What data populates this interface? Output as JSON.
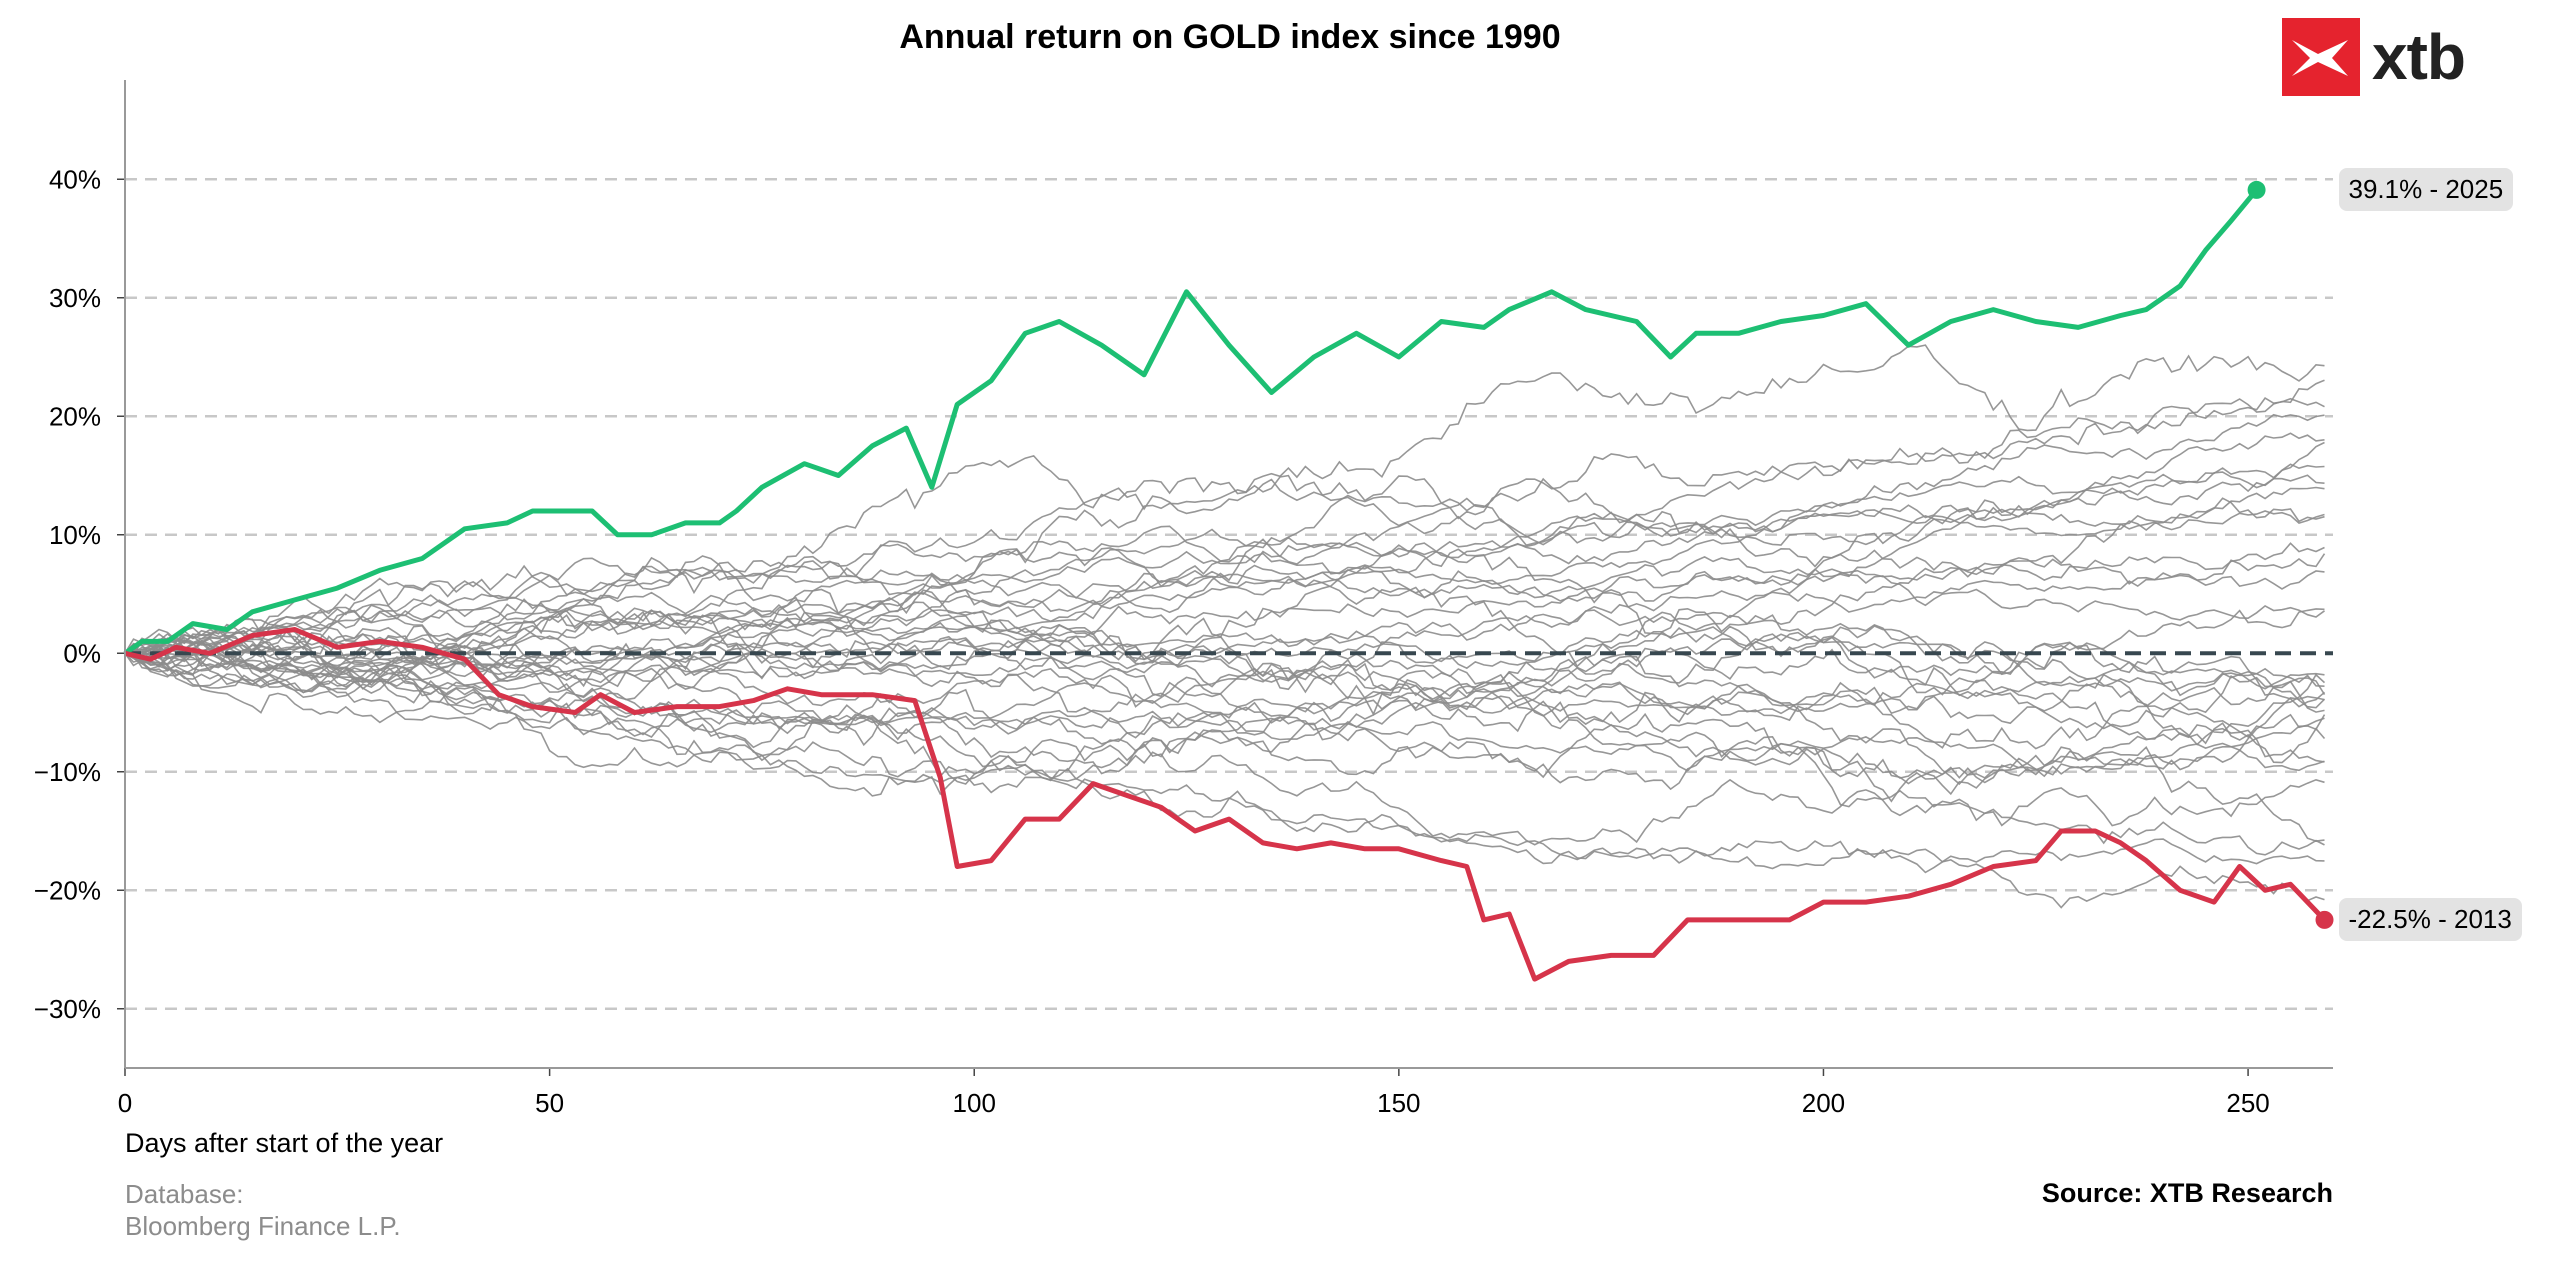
{
  "header": {
    "title": "Annual return on GOLD index since 1990"
  },
  "brand": {
    "logo_text": "xtb",
    "color": "#e5232e"
  },
  "footer": {
    "db_line1": "Database:",
    "db_line2": "Bloomberg Finance L.P.",
    "source": "Source: XTB Research"
  },
  "chart_data": {
    "type": "line",
    "title": "Annual return on GOLD index since 1990",
    "xlabel": "Days after start of the year",
    "ylabel": "",
    "xlim": [
      0,
      260
    ],
    "ylim": [
      -35,
      45
    ],
    "x_ticks": [
      0,
      50,
      100,
      150,
      200,
      250
    ],
    "y_ticks": [
      40,
      30,
      20,
      10,
      0,
      -10,
      -20,
      -30
    ],
    "y_tick_labels": [
      "40%",
      "30%",
      "20%",
      "10%",
      "0%",
      "−10%",
      "−20%",
      "−30%"
    ],
    "grid": "horizontal dashed",
    "zero_line": "dashed dark",
    "background_series_color": "#8c8c8c",
    "background_series_count": 34,
    "highlighted_series": [
      {
        "name": "2025",
        "color": "#1dbf73",
        "label": "39.1% - 2025",
        "final": 39.1,
        "points": [
          [
            0,
            0
          ],
          [
            2,
            1
          ],
          [
            5,
            1
          ],
          [
            8,
            2.5
          ],
          [
            12,
            2
          ],
          [
            15,
            3.5
          ],
          [
            20,
            4.5
          ],
          [
            25,
            5.5
          ],
          [
            30,
            7
          ],
          [
            35,
            8
          ],
          [
            40,
            10.5
          ],
          [
            45,
            11
          ],
          [
            48,
            12
          ],
          [
            55,
            12
          ],
          [
            58,
            10
          ],
          [
            62,
            10
          ],
          [
            66,
            11
          ],
          [
            70,
            11
          ],
          [
            72,
            12
          ],
          [
            75,
            14
          ],
          [
            80,
            16
          ],
          [
            84,
            15
          ],
          [
            88,
            17.5
          ],
          [
            92,
            19
          ],
          [
            95,
            14
          ],
          [
            98,
            21
          ],
          [
            102,
            23
          ],
          [
            106,
            27
          ],
          [
            110,
            28
          ],
          [
            115,
            26
          ],
          [
            120,
            23.5
          ],
          [
            125,
            30.5
          ],
          [
            130,
            26
          ],
          [
            135,
            22
          ],
          [
            140,
            25
          ],
          [
            145,
            27
          ],
          [
            150,
            25
          ],
          [
            155,
            28
          ],
          [
            160,
            27.5
          ],
          [
            163,
            29
          ],
          [
            168,
            30.5
          ],
          [
            172,
            29
          ],
          [
            178,
            28
          ],
          [
            182,
            25
          ],
          [
            185,
            27
          ],
          [
            190,
            27
          ],
          [
            195,
            28
          ],
          [
            200,
            28.5
          ],
          [
            205,
            29.5
          ],
          [
            210,
            26
          ],
          [
            215,
            28
          ],
          [
            220,
            29
          ],
          [
            225,
            28
          ],
          [
            230,
            27.5
          ],
          [
            235,
            28.5
          ],
          [
            238,
            29
          ],
          [
            242,
            31
          ],
          [
            245,
            34
          ],
          [
            248,
            36.5
          ],
          [
            251,
            39.1
          ]
        ]
      },
      {
        "name": "2013",
        "color": "#d6344a",
        "label": "-22.5% - 2013",
        "final": -22.5,
        "points": [
          [
            0,
            0
          ],
          [
            3,
            -0.5
          ],
          [
            6,
            0.5
          ],
          [
            10,
            0
          ],
          [
            15,
            1.5
          ],
          [
            20,
            2
          ],
          [
            25,
            0.5
          ],
          [
            30,
            1
          ],
          [
            35,
            0.5
          ],
          [
            40,
            -0.5
          ],
          [
            44,
            -3.5
          ],
          [
            48,
            -4.5
          ],
          [
            53,
            -5
          ],
          [
            56,
            -3.5
          ],
          [
            60,
            -5
          ],
          [
            65,
            -4.5
          ],
          [
            70,
            -4.5
          ],
          [
            74,
            -4
          ],
          [
            78,
            -3
          ],
          [
            82,
            -3.5
          ],
          [
            88,
            -3.5
          ],
          [
            93,
            -4
          ],
          [
            96,
            -10.5
          ],
          [
            98,
            -18
          ],
          [
            102,
            -17.5
          ],
          [
            106,
            -14
          ],
          [
            110,
            -14
          ],
          [
            114,
            -11
          ],
          [
            118,
            -12
          ],
          [
            122,
            -13
          ],
          [
            126,
            -15
          ],
          [
            130,
            -14
          ],
          [
            134,
            -16
          ],
          [
            138,
            -16.5
          ],
          [
            142,
            -16
          ],
          [
            146,
            -16.5
          ],
          [
            150,
            -16.5
          ],
          [
            155,
            -17.5
          ],
          [
            158,
            -18
          ],
          [
            160,
            -22.5
          ],
          [
            163,
            -22
          ],
          [
            166,
            -27.5
          ],
          [
            170,
            -26
          ],
          [
            175,
            -25.5
          ],
          [
            180,
            -25.5
          ],
          [
            184,
            -22.5
          ],
          [
            190,
            -22.5
          ],
          [
            196,
            -22.5
          ],
          [
            200,
            -21
          ],
          [
            205,
            -21
          ],
          [
            210,
            -20.5
          ],
          [
            215,
            -19.5
          ],
          [
            220,
            -18
          ],
          [
            225,
            -17.5
          ],
          [
            228,
            -15
          ],
          [
            232,
            -15
          ],
          [
            235,
            -16
          ],
          [
            238,
            -17.5
          ],
          [
            242,
            -20
          ],
          [
            246,
            -21
          ],
          [
            249,
            -18
          ],
          [
            252,
            -20
          ],
          [
            255,
            -19.5
          ],
          [
            259,
            -22.5
          ]
        ]
      }
    ]
  }
}
